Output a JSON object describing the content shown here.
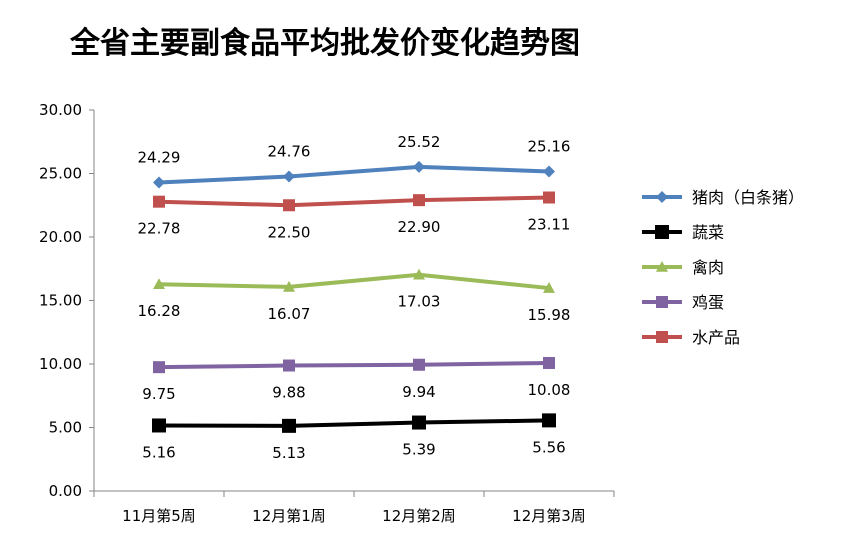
{
  "chart_data": {
    "type": "line",
    "title": "全省主要副食品平均批发价变化趋势图",
    "xlabel": "",
    "ylabel": "",
    "categories": [
      "11月第5周",
      "12月第1周",
      "12月第2周",
      "12月第3周"
    ],
    "ylim": [
      0,
      30
    ],
    "yticks": [
      "0.00",
      "5.00",
      "10.00",
      "15.00",
      "20.00",
      "25.00",
      "30.00"
    ],
    "grid": false,
    "legend_position": "right",
    "series": [
      {
        "name": "猪肉（白条猪）",
        "values": [
          24.29,
          24.76,
          25.52,
          25.16
        ],
        "labels": [
          "24.29",
          "24.76",
          "25.52",
          "25.16"
        ],
        "label_pos": "above",
        "color": "#4F81BD",
        "marker": "diamond"
      },
      {
        "name": "蔬菜",
        "values": [
          5.16,
          5.13,
          5.39,
          5.56
        ],
        "labels": [
          "5.16",
          "5.13",
          "5.39",
          "5.56"
        ],
        "label_pos": "below",
        "color": "#000000",
        "marker": "square"
      },
      {
        "name": "禽肉",
        "values": [
          16.28,
          16.07,
          17.03,
          15.98
        ],
        "labels": [
          "16.28",
          "16.07",
          "17.03",
          "15.98"
        ],
        "label_pos": "below",
        "color": "#9BBB59",
        "marker": "triangle"
      },
      {
        "name": "鸡蛋",
        "values": [
          9.75,
          9.88,
          9.94,
          10.08
        ],
        "labels": [
          "9.75",
          "9.88",
          "9.94",
          "10.08"
        ],
        "label_pos": "below",
        "color": "#8064A2",
        "marker": "square"
      },
      {
        "name": "水产品",
        "values": [
          22.78,
          22.5,
          22.9,
          23.11
        ],
        "labels": [
          "22.78",
          "22.50",
          "22.90",
          "23.11"
        ],
        "label_pos": "below",
        "color": "#C0504D",
        "marker": "square"
      }
    ]
  }
}
